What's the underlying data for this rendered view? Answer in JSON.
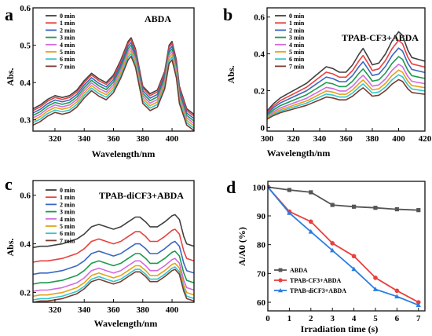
{
  "chart_data": [
    {
      "type": "line",
      "panel_label": "a",
      "title": "ABDA",
      "xlabel": "Wavelength/nm",
      "ylabel": "Abs.",
      "xlim": [
        305,
        415
      ],
      "ylim": [
        0.27,
        0.6
      ],
      "xticks": [
        320,
        340,
        360,
        380,
        400
      ],
      "yticks": [
        0.3,
        0.4,
        0.5,
        0.6
      ],
      "legend_position": "top-left",
      "series": [
        {
          "name": "0 min",
          "color": "#404040",
          "shift": 0.03,
          "scale": 1.0
        },
        {
          "name": "1 min",
          "color": "#e8413e",
          "shift": 0.025,
          "scale": 1.0
        },
        {
          "name": "2 min",
          "color": "#3a66c4",
          "shift": 0.02,
          "scale": 0.995
        },
        {
          "name": "3 min",
          "color": "#1c9a4c",
          "shift": 0.015,
          "scale": 0.99
        },
        {
          "name": "4 min",
          "color": "#d36ae0",
          "shift": 0.01,
          "scale": 0.985
        },
        {
          "name": "5 min",
          "color": "#e3a21a",
          "shift": 0.005,
          "scale": 0.98
        },
        {
          "name": "6 min",
          "color": "#33c6cc",
          "shift": 0.0,
          "scale": 0.975
        },
        {
          "name": "7 min",
          "color": "#7a3b2e",
          "shift": -0.005,
          "scale": 0.97
        }
      ],
      "wavelength": [
        305,
        310,
        315,
        320,
        325,
        330,
        335,
        340,
        345,
        350,
        355,
        360,
        365,
        370,
        372,
        375,
        380,
        385,
        390,
        395,
        398,
        400,
        403,
        405,
        410,
        415
      ],
      "base_abs": [
        0.3,
        0.31,
        0.325,
        0.335,
        0.33,
        0.335,
        0.35,
        0.375,
        0.395,
        0.38,
        0.37,
        0.39,
        0.43,
        0.48,
        0.49,
        0.46,
        0.36,
        0.34,
        0.35,
        0.4,
        0.47,
        0.48,
        0.43,
        0.36,
        0.3,
        0.285
      ]
    },
    {
      "type": "line",
      "panel_label": "b",
      "title": "TPAB-CF3+ABDA",
      "xlabel": "Wavelength/nm",
      "ylabel": "Abs.",
      "xlim": [
        300,
        420
      ],
      "ylim": [
        -0.02,
        0.65
      ],
      "xticks": [
        300,
        320,
        340,
        360,
        380,
        400,
        420
      ],
      "yticks": [
        0.0,
        0.2,
        0.4,
        0.6
      ],
      "legend_position": "top-left",
      "series": [
        {
          "name": "0 min",
          "color": "#404040",
          "shift": 0.0,
          "scale": 1.0
        },
        {
          "name": "1 min",
          "color": "#e8413e",
          "shift": 0.0,
          "scale": 0.91
        },
        {
          "name": "2 min",
          "color": "#3a66c4",
          "shift": 0.0,
          "scale": 0.83
        },
        {
          "name": "3 min",
          "color": "#1c9a4c",
          "shift": 0.0,
          "scale": 0.74
        },
        {
          "name": "4 min",
          "color": "#d36ae0",
          "shift": 0.0,
          "scale": 0.66
        },
        {
          "name": "5 min",
          "color": "#e3a21a",
          "shift": 0.0,
          "scale": 0.6
        },
        {
          "name": "6 min",
          "color": "#33c6cc",
          "shift": 0.0,
          "scale": 0.55
        },
        {
          "name": "7 min",
          "color": "#7a3b2e",
          "shift": 0.0,
          "scale": 0.5
        }
      ],
      "wavelength": [
        300,
        305,
        310,
        315,
        320,
        325,
        330,
        335,
        340,
        345,
        350,
        355,
        360,
        365,
        370,
        373,
        377,
        380,
        385,
        390,
        395,
        400,
        403,
        407,
        410,
        415,
        420
      ],
      "base_abs": [
        0.09,
        0.13,
        0.16,
        0.18,
        0.2,
        0.22,
        0.24,
        0.27,
        0.3,
        0.33,
        0.32,
        0.3,
        0.3,
        0.34,
        0.4,
        0.43,
        0.38,
        0.34,
        0.35,
        0.4,
        0.47,
        0.52,
        0.5,
        0.42,
        0.38,
        0.37,
        0.36
      ]
    },
    {
      "type": "line",
      "panel_label": "c",
      "title": "TPAB-diCF3+ABDA",
      "xlabel": "Wavelength/nm",
      "ylabel": "Abs.",
      "xlim": [
        305,
        415
      ],
      "ylim": [
        0.16,
        0.66
      ],
      "xticks": [
        320,
        340,
        360,
        380,
        400
      ],
      "yticks": [
        0.2,
        0.4,
        0.6
      ],
      "legend_position": "top-left",
      "series": [
        {
          "name": "0 min",
          "color": "#404040",
          "shift": 0.0,
          "scale": 1.0
        },
        {
          "name": "1 min",
          "color": "#e8413e",
          "shift": -0.06,
          "scale": 1.0
        },
        {
          "name": "2 min",
          "color": "#3a66c4",
          "shift": -0.11,
          "scale": 1.0
        },
        {
          "name": "3 min",
          "color": "#1c9a4c",
          "shift": -0.15,
          "scale": 1.0
        },
        {
          "name": "4 min",
          "color": "#d36ae0",
          "shift": -0.18,
          "scale": 1.0
        },
        {
          "name": "5 min",
          "color": "#e3a21a",
          "shift": -0.2,
          "scale": 1.0
        },
        {
          "name": "6 min",
          "color": "#33c6cc",
          "shift": -0.215,
          "scale": 1.0
        },
        {
          "name": "7 min",
          "color": "#7a3b2e",
          "shift": -0.225,
          "scale": 1.0
        }
      ],
      "wavelength": [
        305,
        310,
        315,
        320,
        325,
        330,
        335,
        340,
        345,
        350,
        355,
        360,
        365,
        370,
        375,
        378,
        382,
        385,
        390,
        395,
        400,
        402,
        405,
        408,
        410,
        415
      ],
      "base_abs": [
        0.385,
        0.39,
        0.39,
        0.395,
        0.4,
        0.41,
        0.42,
        0.44,
        0.47,
        0.48,
        0.47,
        0.46,
        0.47,
        0.49,
        0.51,
        0.51,
        0.49,
        0.47,
        0.47,
        0.49,
        0.515,
        0.52,
        0.5,
        0.43,
        0.4,
        0.39
      ]
    },
    {
      "type": "line",
      "panel_label": "d",
      "xlabel": "Irradiation time (s)",
      "ylabel": "A/A0 (%)",
      "xlim": [
        0,
        7.3
      ],
      "ylim": [
        57,
        102
      ],
      "xticks": [
        0,
        1,
        2,
        3,
        4,
        5,
        6,
        7
      ],
      "yticks": [
        60,
        70,
        80,
        90,
        100
      ],
      "legend_position": "bottom-left",
      "x": [
        0,
        1,
        2,
        3,
        4,
        5,
        6,
        7
      ],
      "series": [
        {
          "name": "ABDA",
          "color": "#555555",
          "marker": "square",
          "values": [
            100,
            99,
            98.2,
            93.8,
            93.2,
            92.8,
            92.3,
            92.0
          ]
        },
        {
          "name": "TPAB-CF3+ABDA",
          "color": "#e8413e",
          "marker": "circle",
          "values": [
            100,
            91.5,
            88,
            80.5,
            76,
            68.5,
            64,
            60
          ]
        },
        {
          "name": "TPAB-diCF3+ABDA",
          "color": "#2a7de1",
          "marker": "triangle",
          "values": [
            100,
            91,
            84.5,
            78,
            71.5,
            64.5,
            62,
            59
          ]
        }
      ]
    }
  ]
}
